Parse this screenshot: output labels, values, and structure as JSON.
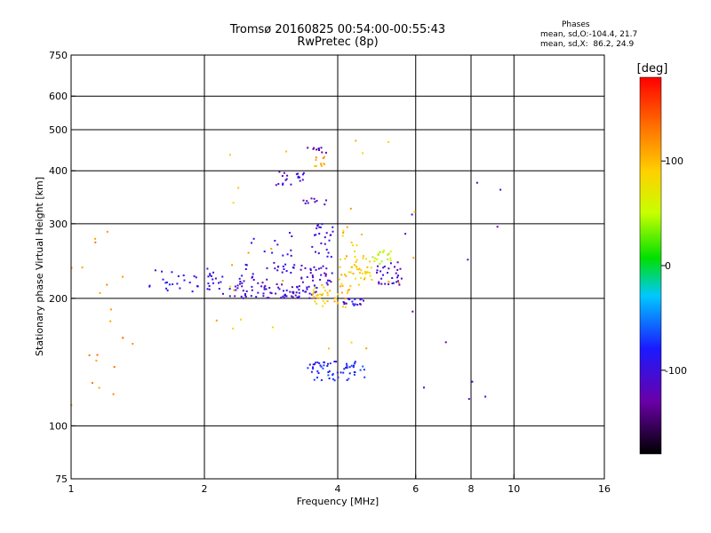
{
  "header": {
    "title": "Tromsø 20160825 00:54:00-00:55:43",
    "subtitle": "RwPretec (8p)"
  },
  "stats": {
    "heading": "Phases",
    "line1": "mean, sd,O:-104.4, 21.7",
    "line2": "mean, sd,X:  86.2, 24.9"
  },
  "colorbar": {
    "label": "[deg]",
    "min": -180,
    "max": 180,
    "ticks": [
      100,
      0,
      -100
    ]
  },
  "chart_data": {
    "type": "scatter",
    "title": "Tromsø 20160825 00:54:00-00:55:43",
    "subtitle": "RwPretec (8p)",
    "xlabel": "Frequency [MHz]",
    "ylabel": "Stationary phase Virtual Height [km]",
    "xscale": "log",
    "yscale": "log",
    "xlim": [
      1,
      16
    ],
    "ylim": [
      75,
      750
    ],
    "xticks": [
      1,
      2,
      4,
      6,
      8,
      10,
      16
    ],
    "yticks": [
      75,
      100,
      200,
      300,
      400,
      500,
      600,
      750
    ],
    "grid_x": [
      2,
      4,
      6,
      8,
      10
    ],
    "grid_y": [
      100,
      200,
      300,
      400,
      500,
      600
    ],
    "color_variable": "phase [deg]",
    "clusters": [
      {
        "x": [
          1.5,
          2.2
        ],
        "y": [
          205,
          235
        ],
        "phase": -95,
        "n": 40
      },
      {
        "x": [
          2.2,
          3.0
        ],
        "y": [
          200,
          220
        ],
        "phase": -110,
        "n": 45
      },
      {
        "x": [
          2.4,
          3.2
        ],
        "y": [
          220,
          245
        ],
        "phase": -100,
        "n": 25
      },
      {
        "x": [
          3.0,
          3.6
        ],
        "y": [
          200,
          215
        ],
        "phase": -105,
        "n": 40
      },
      {
        "x": [
          3.3,
          3.9
        ],
        "y": [
          215,
          240
        ],
        "phase": -110,
        "n": 30
      },
      {
        "x": [
          3.5,
          3.9
        ],
        "y": [
          250,
          300
        ],
        "phase": -105,
        "n": 25
      },
      {
        "x": [
          2.5,
          3.2
        ],
        "y": [
          250,
          290
        ],
        "phase": -100,
        "n": 12
      },
      {
        "x": [
          2.9,
          3.4
        ],
        "y": [
          370,
          400
        ],
        "phase": -110,
        "n": 20
      },
      {
        "x": [
          3.3,
          3.8
        ],
        "y": [
          330,
          350
        ],
        "phase": -110,
        "n": 10
      },
      {
        "x": [
          3.4,
          3.8
        ],
        "y": [
          440,
          455
        ],
        "phase": -115,
        "n": 10
      },
      {
        "x": [
          3.55,
          3.8
        ],
        "y": [
          410,
          435
        ],
        "phase": 110,
        "n": 10
      },
      {
        "x": [
          3.5,
          4.3
        ],
        "y": [
          190,
          215
        ],
        "phase": 95,
        "n": 40
      },
      {
        "x": [
          4.0,
          4.8
        ],
        "y": [
          215,
          250
        ],
        "phase": 90,
        "n": 40
      },
      {
        "x": [
          4.8,
          5.3
        ],
        "y": [
          240,
          260
        ],
        "phase": 55,
        "n": 18
      },
      {
        "x": [
          4.1,
          4.6
        ],
        "y": [
          190,
          200
        ],
        "phase": -95,
        "n": 18
      },
      {
        "x": [
          4.9,
          5.6
        ],
        "y": [
          215,
          245
        ],
        "phase": -110,
        "n": 30
      },
      {
        "x": [
          4.1,
          4.6
        ],
        "y": [
          250,
          300
        ],
        "phase": 100,
        "n": 12
      },
      {
        "x": [
          3.4,
          4.6
        ],
        "y": [
          128,
          142
        ],
        "phase": -80,
        "n": 60
      },
      {
        "x": [
          1.0,
          1.4
        ],
        "y": [
          110,
          300
        ],
        "phase": 120,
        "n": 20
      },
      {
        "x": [
          2.0,
          6.0
        ],
        "y": [
          150,
          500
        ],
        "phase": 100,
        "n": 30
      },
      {
        "x": [
          5.5,
          9.5
        ],
        "y": [
          100,
          400
        ],
        "phase": -110,
        "n": 12
      }
    ]
  }
}
